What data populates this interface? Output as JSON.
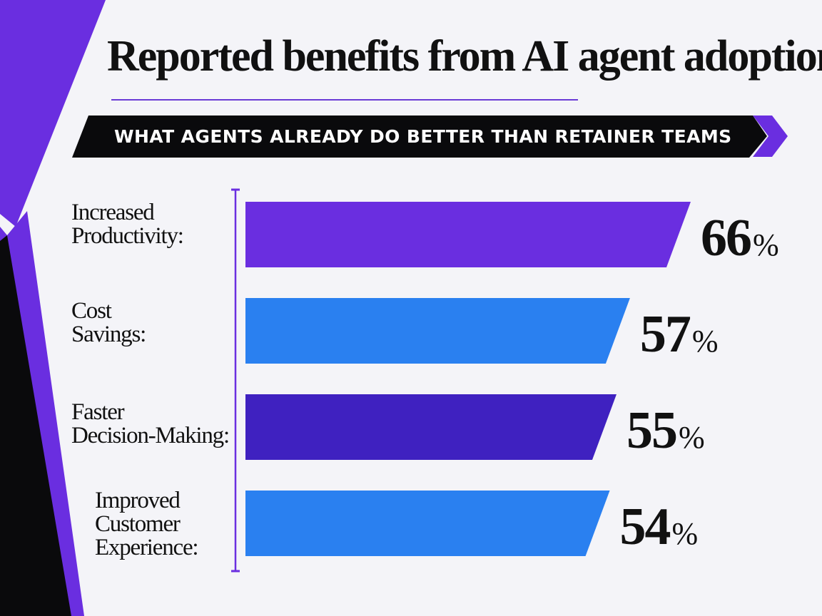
{
  "title": "Reported benefits from AI agent adoption",
  "banner": "WHAT AGENTS ALREADY DO BETTER THAN RETAINER TEAMS",
  "colors": {
    "background": "#f4f4f8",
    "accent_purple": "#6a2ee0",
    "dark_purple": "#3f21c0",
    "blue": "#2a80f0",
    "black": "#0a0a0c"
  },
  "chart_data": {
    "type": "bar",
    "orientation": "horizontal",
    "title": "Reported benefits from AI agent adoption",
    "subtitle": "WHAT AGENTS ALREADY DO BETTER THAN RETAINER TEAMS",
    "categories": [
      "Increased\nProductivity:",
      "Cost\nSavings:",
      "Faster\nDecision-Making:",
      "Improved\nCustomer\nExperience:"
    ],
    "values": [
      66,
      57,
      55,
      54
    ],
    "value_labels": [
      "66",
      "57",
      "55",
      "54"
    ],
    "unit": "%",
    "bar_colors": [
      "#6a2ee0",
      "#2a80f0",
      "#3f21c0",
      "#2a80f0"
    ],
    "xlim": [
      0,
      66
    ],
    "grid": false,
    "legend": "none"
  }
}
